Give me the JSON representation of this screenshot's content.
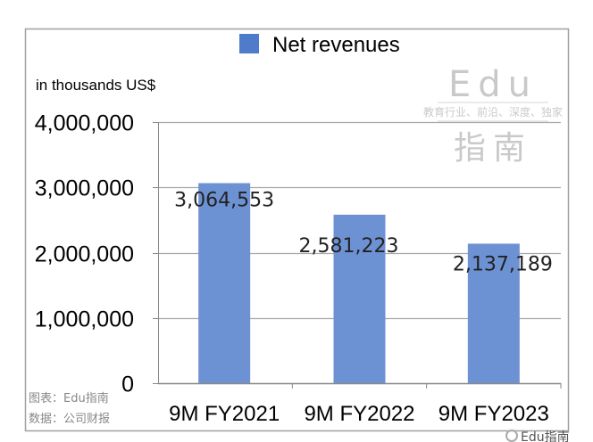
{
  "chart_data": {
    "type": "bar",
    "title": "",
    "unit_label": "in thousands US$",
    "legend": {
      "entries": [
        "Net revenues"
      ],
      "placement": "top"
    },
    "categories": [
      "9M FY2021",
      "9M FY2022",
      "9M FY2023"
    ],
    "series": [
      {
        "name": "Net revenues",
        "values": [
          3064553,
          2581223,
          2137189
        ],
        "color": "#6d92d4"
      }
    ],
    "data_labels": [
      "3,064,553",
      "2,581,223",
      "2,137,189"
    ],
    "y_ticks": [
      0,
      1000000,
      2000000,
      3000000,
      4000000
    ],
    "y_tick_labels": [
      "0",
      "1,000,000",
      "2,000,000",
      "3,000,000",
      "4,000,000"
    ],
    "ylim": [
      0,
      4000000
    ],
    "grid": true,
    "xlabel": "",
    "ylabel": ""
  },
  "source": {
    "chart_credit": "图表：Edu指南",
    "data_credit": "数据：公司财报"
  },
  "watermark": {
    "big_text": "Edu",
    "big_text_2": "指南",
    "tagline": "教育行业、前沿、深度、独家",
    "corner_logo": "Edu指南"
  }
}
